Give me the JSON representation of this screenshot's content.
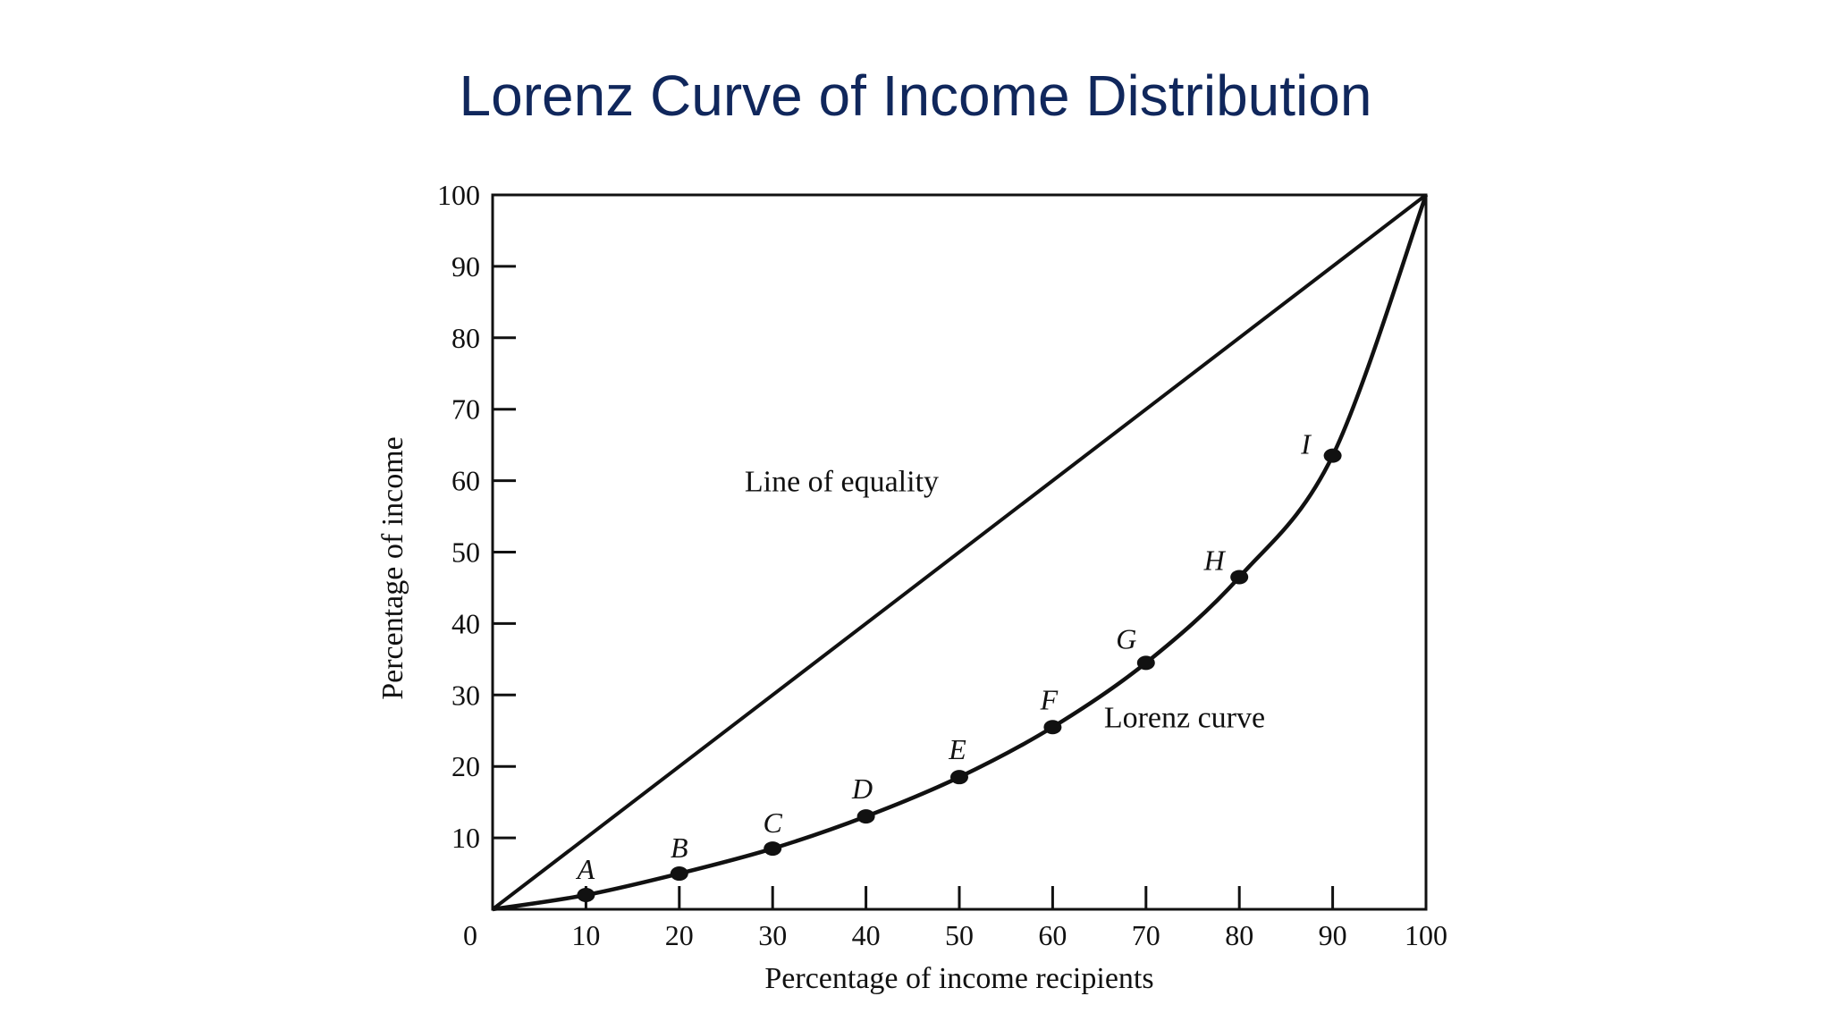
{
  "slide": {
    "title": "Lorenz Curve of Income Distribution"
  },
  "chart_data": {
    "type": "line",
    "xlabel": "Percentage of income recipients",
    "ylabel": "Percentage of income",
    "xlim": [
      0,
      100
    ],
    "ylim": [
      0,
      100
    ],
    "x_ticks": [
      "0",
      "10",
      "20",
      "30",
      "40",
      "50",
      "60",
      "70",
      "80",
      "90",
      "100"
    ],
    "y_ticks": [
      "10",
      "20",
      "30",
      "40",
      "50",
      "60",
      "70",
      "80",
      "90",
      "100"
    ],
    "grid": false,
    "line_of_equality": {
      "label": "Line of equality",
      "x": [
        0,
        100
      ],
      "y": [
        0,
        100
      ]
    },
    "lorenz_curve": {
      "label": "Lorenz curve",
      "x": [
        0,
        10,
        20,
        30,
        40,
        50,
        60,
        70,
        80,
        90,
        100
      ],
      "y": [
        0,
        2,
        5,
        8.5,
        13,
        18.5,
        25.5,
        34.5,
        46.5,
        63.5,
        100
      ]
    },
    "points": [
      {
        "label": "A",
        "x": 10,
        "y": 2
      },
      {
        "label": "B",
        "x": 20,
        "y": 5
      },
      {
        "label": "C",
        "x": 30,
        "y": 8.5
      },
      {
        "label": "D",
        "x": 40,
        "y": 13
      },
      {
        "label": "E",
        "x": 50,
        "y": 18.5
      },
      {
        "label": "F",
        "x": 60,
        "y": 25.5
      },
      {
        "label": "G",
        "x": 70,
        "y": 34.5
      },
      {
        "label": "H",
        "x": 80,
        "y": 46.5
      },
      {
        "label": "I",
        "x": 90,
        "y": 63.5
      }
    ]
  }
}
